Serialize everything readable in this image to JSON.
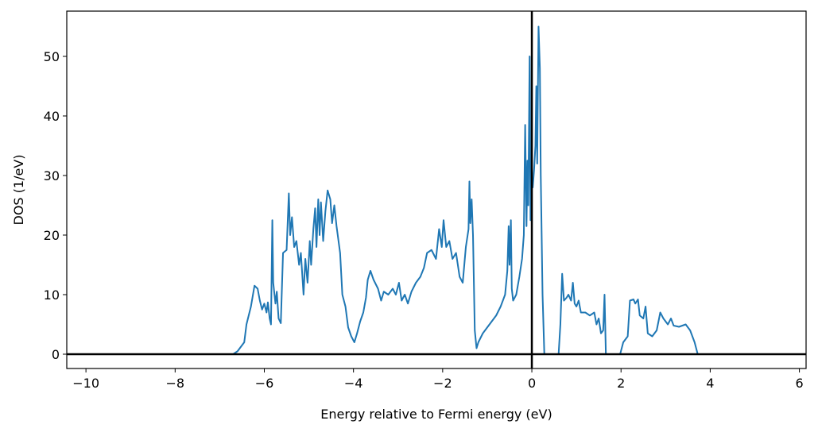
{
  "chart_data": {
    "type": "line",
    "xlabel": "Energy relative to Fermi energy (eV)",
    "ylabel": "DOS (1/eV)",
    "xlim": [
      -10.43,
      6.15
    ],
    "ylim": [
      -2.4,
      57.6
    ],
    "xticks": [
      {
        "value": -10,
        "label": "−10"
      },
      {
        "value": -8,
        "label": "−8"
      },
      {
        "value": -6,
        "label": "−6"
      },
      {
        "value": -4,
        "label": "−4"
      },
      {
        "value": -2,
        "label": "−2"
      },
      0,
      2,
      4,
      6
    ],
    "yticks": [
      0,
      10,
      20,
      30,
      40,
      50
    ],
    "reference_lines": {
      "y": 0,
      "x": 0,
      "color": "#000000"
    },
    "series": [
      {
        "color": "#1f77b4",
        "x": [
          -10,
          -6.7,
          -6.6,
          -6.45,
          -6.4,
          -6.3,
          -6.22,
          -6.15,
          -6.1,
          -6.05,
          -6.0,
          -5.95,
          -5.92,
          -5.88,
          -5.85,
          -5.82,
          -5.8,
          -5.75,
          -5.72,
          -5.68,
          -5.63,
          -5.58,
          -5.5,
          -5.45,
          -5.42,
          -5.38,
          -5.33,
          -5.28,
          -5.22,
          -5.18,
          -5.12,
          -5.08,
          -5.03,
          -4.98,
          -4.95,
          -4.9,
          -4.86,
          -4.83,
          -4.79,
          -4.76,
          -4.73,
          -4.68,
          -4.63,
          -4.58,
          -4.52,
          -4.48,
          -4.43,
          -4.38,
          -4.3,
          -4.25,
          -4.18,
          -4.12,
          -4.05,
          -3.98,
          -3.92,
          -3.85,
          -3.78,
          -3.72,
          -3.68,
          -3.62,
          -3.55,
          -3.45,
          -3.38,
          -3.32,
          -3.22,
          -3.12,
          -3.05,
          -2.98,
          -2.92,
          -2.85,
          -2.78,
          -2.7,
          -2.6,
          -2.5,
          -2.42,
          -2.35,
          -2.25,
          -2.15,
          -2.08,
          -2.02,
          -1.98,
          -1.92,
          -1.85,
          -1.78,
          -1.7,
          -1.62,
          -1.55,
          -1.48,
          -1.42,
          -1.4,
          -1.38,
          -1.35,
          -1.32,
          -1.28,
          -1.24,
          -1.2,
          -1.1,
          -1.0,
          -0.9,
          -0.8,
          -0.7,
          -0.6,
          -0.55,
          -0.52,
          -0.5,
          -0.47,
          -0.45,
          -0.42,
          -0.35,
          -0.28,
          -0.22,
          -0.18,
          -0.15,
          -0.12,
          -0.1,
          -0.08,
          -0.05,
          -0.03,
          -0.01,
          0.02,
          0.05,
          0.08,
          0.1,
          0.12,
          0.15,
          0.18,
          0.2,
          0.24,
          0.28,
          0.6,
          0.64,
          0.68,
          0.72,
          0.78,
          0.82,
          0.88,
          0.92,
          0.96,
          1.0,
          1.05,
          1.1,
          1.2,
          1.3,
          1.4,
          1.45,
          1.5,
          1.55,
          1.6,
          1.63,
          1.66,
          1.98,
          2.05,
          2.15,
          2.2,
          2.28,
          2.32,
          2.38,
          2.42,
          2.5,
          2.55,
          2.6,
          2.7,
          2.8,
          2.88,
          2.95,
          3.05,
          3.12,
          3.18,
          3.3,
          3.45,
          3.55,
          3.65,
          3.72,
          5.5
        ],
        "values": [
          0,
          0,
          0.5,
          2,
          5,
          8,
          11.5,
          11,
          9,
          7.5,
          8.5,
          7,
          8.7,
          6,
          5,
          22.5,
          12,
          8.5,
          10.5,
          6,
          5.2,
          17,
          17.5,
          27,
          20,
          23,
          18,
          19,
          15,
          17,
          10,
          16,
          12,
          19,
          15,
          21,
          24.5,
          18,
          26,
          20,
          25.5,
          19,
          24,
          27.5,
          26,
          22,
          25,
          21.5,
          17,
          10,
          8,
          4.5,
          3,
          2,
          3.5,
          5.5,
          7,
          9.5,
          12.5,
          14,
          12.5,
          11,
          9,
          10.5,
          10,
          11,
          10,
          12,
          9,
          10,
          8.5,
          10.5,
          12,
          13,
          14.5,
          17,
          17.5,
          16,
          21,
          18,
          22.5,
          18,
          19,
          16,
          17,
          13,
          12,
          18,
          21,
          29,
          22,
          26,
          20,
          4,
          1,
          2,
          3.5,
          4.5,
          5.5,
          6.5,
          8,
          10,
          14,
          21.5,
          15,
          22.5,
          11,
          9,
          10,
          13,
          16,
          20,
          38.5,
          21.5,
          32.5,
          25,
          50,
          22.5,
          30,
          28,
          31,
          35,
          45,
          32,
          55,
          48,
          30,
          10,
          0,
          0,
          5,
          13.5,
          9,
          9.5,
          10,
          9,
          12,
          8.5,
          8,
          9,
          7,
          7,
          6.5,
          7,
          5,
          6,
          3.5,
          4,
          10,
          0,
          0,
          2,
          3,
          9,
          9.2,
          8.5,
          9.2,
          6.5,
          6,
          8,
          3.5,
          3,
          4,
          7,
          6,
          5,
          6,
          4.8,
          4.6,
          5,
          4,
          2,
          0,
          0
        ]
      }
    ]
  }
}
